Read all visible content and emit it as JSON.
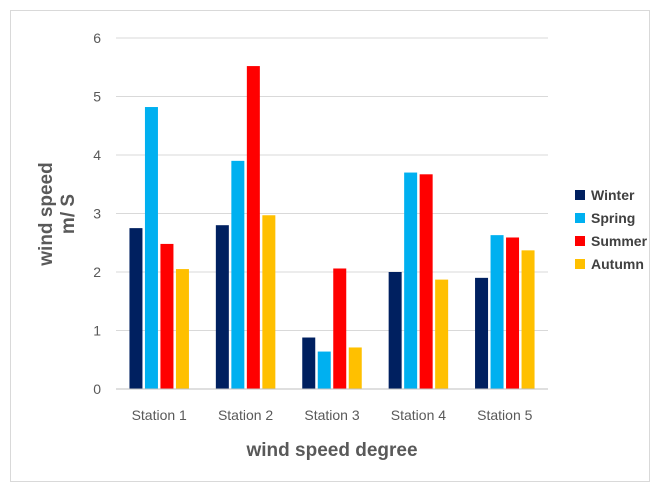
{
  "chart_data": {
    "type": "bar",
    "categories": [
      "Station 1",
      "Station 2",
      "Station 3",
      "Station 4",
      "Station 5"
    ],
    "series": [
      {
        "name": "Winter",
        "color": "#002060",
        "values": [
          2.75,
          2.8,
          0.88,
          2.0,
          1.9
        ]
      },
      {
        "name": "Spring",
        "color": "#00B0F0",
        "values": [
          4.82,
          3.9,
          0.64,
          3.7,
          2.63
        ]
      },
      {
        "name": "Summer",
        "color": "#FF0000",
        "values": [
          2.48,
          5.52,
          2.06,
          3.67,
          2.59
        ]
      },
      {
        "name": "Autumn",
        "color": "#FFC000",
        "values": [
          2.05,
          2.97,
          0.71,
          1.87,
          2.37
        ]
      }
    ],
    "title": "",
    "xlabel": "wind speed degree",
    "ylabel_line1": "wind speed",
    "ylabel_line2": "m/ S",
    "ylim": [
      0,
      6
    ],
    "yticks": [
      "0",
      "1",
      "2",
      "3",
      "4",
      "5",
      "6"
    ],
    "grid": true,
    "legend_position": "right"
  }
}
